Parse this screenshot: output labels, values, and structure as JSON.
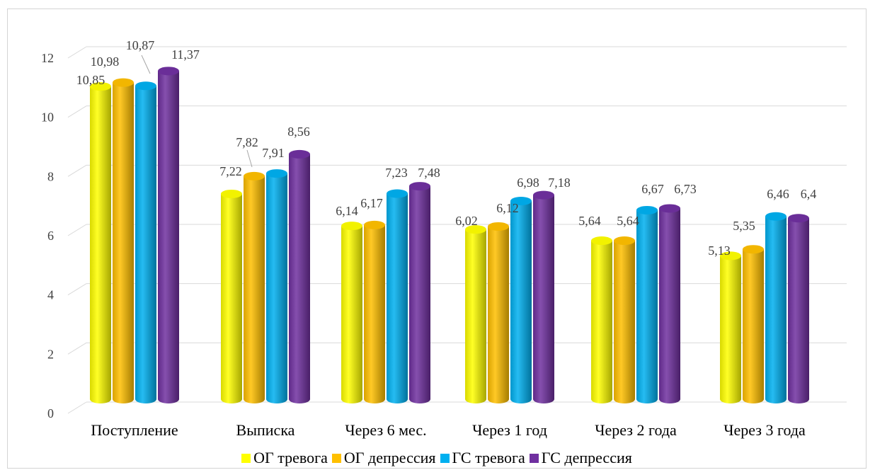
{
  "chart_data": {
    "type": "bar",
    "style": "3d-cylinder",
    "categories": [
      "Поступление",
      "Выписка",
      "Через 6 мес.",
      "Через 1 год",
      "Через 2 года",
      "Через 3 года"
    ],
    "series": [
      {
        "name": "ОГ тревога",
        "color": "#ffff00",
        "values": [
          10.85,
          7.22,
          6.14,
          6.02,
          5.64,
          5.13
        ],
        "labels": [
          "10,85",
          "7,22",
          "6,14",
          "6,02",
          "5,64",
          "5,13"
        ]
      },
      {
        "name": "ОГ депрессия",
        "color": "#ffc000",
        "values": [
          10.98,
          7.82,
          6.17,
          6.12,
          5.64,
          5.35
        ],
        "labels": [
          "10,98",
          "7,82",
          "6,17",
          "6,12",
          "5,64",
          "5,35"
        ]
      },
      {
        "name": "ГС тревога",
        "color": "#00b0f0",
        "values": [
          10.87,
          7.91,
          7.23,
          6.98,
          6.67,
          6.46
        ],
        "labels": [
          "10,87",
          "7,91",
          "7,23",
          "6,98",
          "6,67",
          "6,46"
        ]
      },
      {
        "name": "ГС депрессия",
        "color": "#7030a0",
        "values": [
          11.37,
          8.56,
          7.48,
          7.18,
          6.73,
          6.4
        ],
        "labels": [
          "11,37",
          "8,56",
          "7,48",
          "7,18",
          "6,73",
          "6,4"
        ]
      }
    ],
    "y_ticks": [
      "0",
      "2",
      "4",
      "6",
      "8",
      "10",
      "12"
    ],
    "ylim": [
      0,
      12
    ],
    "grid": true,
    "legend_position": "bottom",
    "title": "",
    "xlabel": "",
    "ylabel": ""
  }
}
